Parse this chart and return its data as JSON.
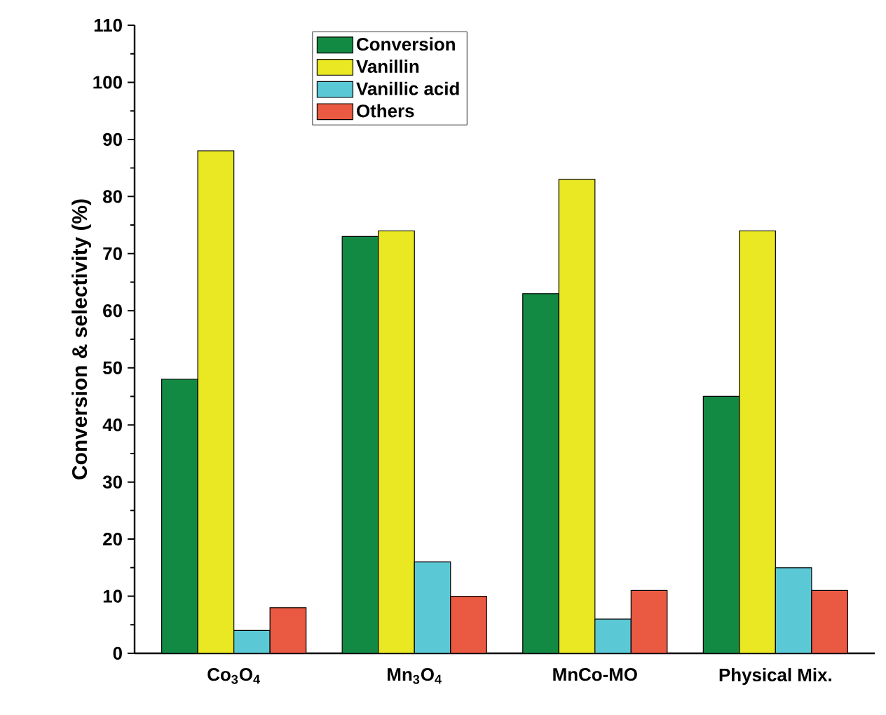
{
  "chart_data": {
    "type": "bar",
    "ylabel": "Conversion & selectivity (%)",
    "categories": [
      "Co$_{3}$O$_{4}$",
      "Mn$_{3}$O$_{4}$",
      "MnCo-MO",
      "Physical Mix."
    ],
    "series": [
      {
        "name": "Conversion",
        "color": "#138a43",
        "values": [
          48,
          73,
          63,
          45
        ]
      },
      {
        "name": "Vanillin",
        "color": "#eae823",
        "values": [
          88,
          74,
          83,
          74
        ]
      },
      {
        "name": "Vanillic acid",
        "color": "#5bc8d6",
        "values": [
          4,
          16,
          6,
          15
        ]
      },
      {
        "name": "Others",
        "color": "#ea5a42",
        "values": [
          8,
          10,
          11,
          11
        ]
      }
    ],
    "ylim": [
      0,
      110
    ],
    "yticks": [
      0,
      10,
      20,
      30,
      40,
      50,
      60,
      70,
      80,
      90,
      100,
      110
    ],
    "legend": "top",
    "grid": false
  }
}
